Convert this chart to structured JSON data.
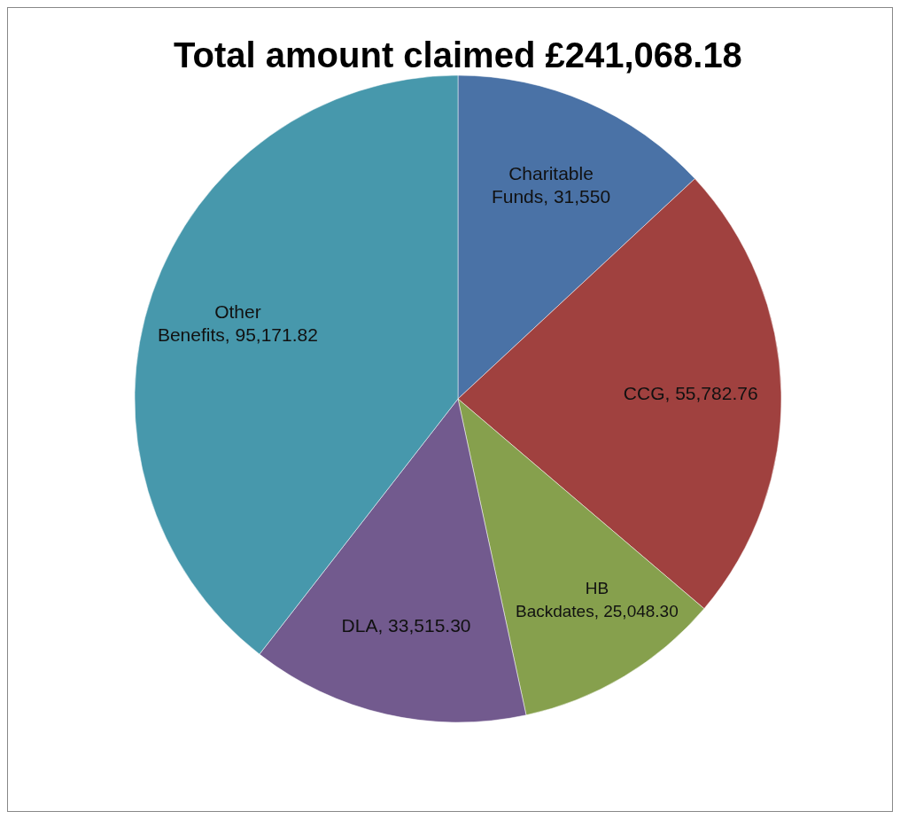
{
  "chart_data": {
    "type": "pie",
    "title": "Total amount claimed  £241,068.18",
    "categories": [
      "Charitable Funds",
      "CCG",
      "HB Backdates",
      "DLA",
      "Other Benefits"
    ],
    "values": [
      31550,
      55782.76,
      25048.3,
      33515.3,
      95171.82
    ],
    "value_labels": [
      "31,550",
      "55,782.76",
      "25,048.30",
      "33,515.30",
      "95,171.82"
    ],
    "colors": [
      "#4a72a6",
      "#a0413f",
      "#86a04d",
      "#725a8e",
      "#4798ac"
    ],
    "legend": false
  }
}
